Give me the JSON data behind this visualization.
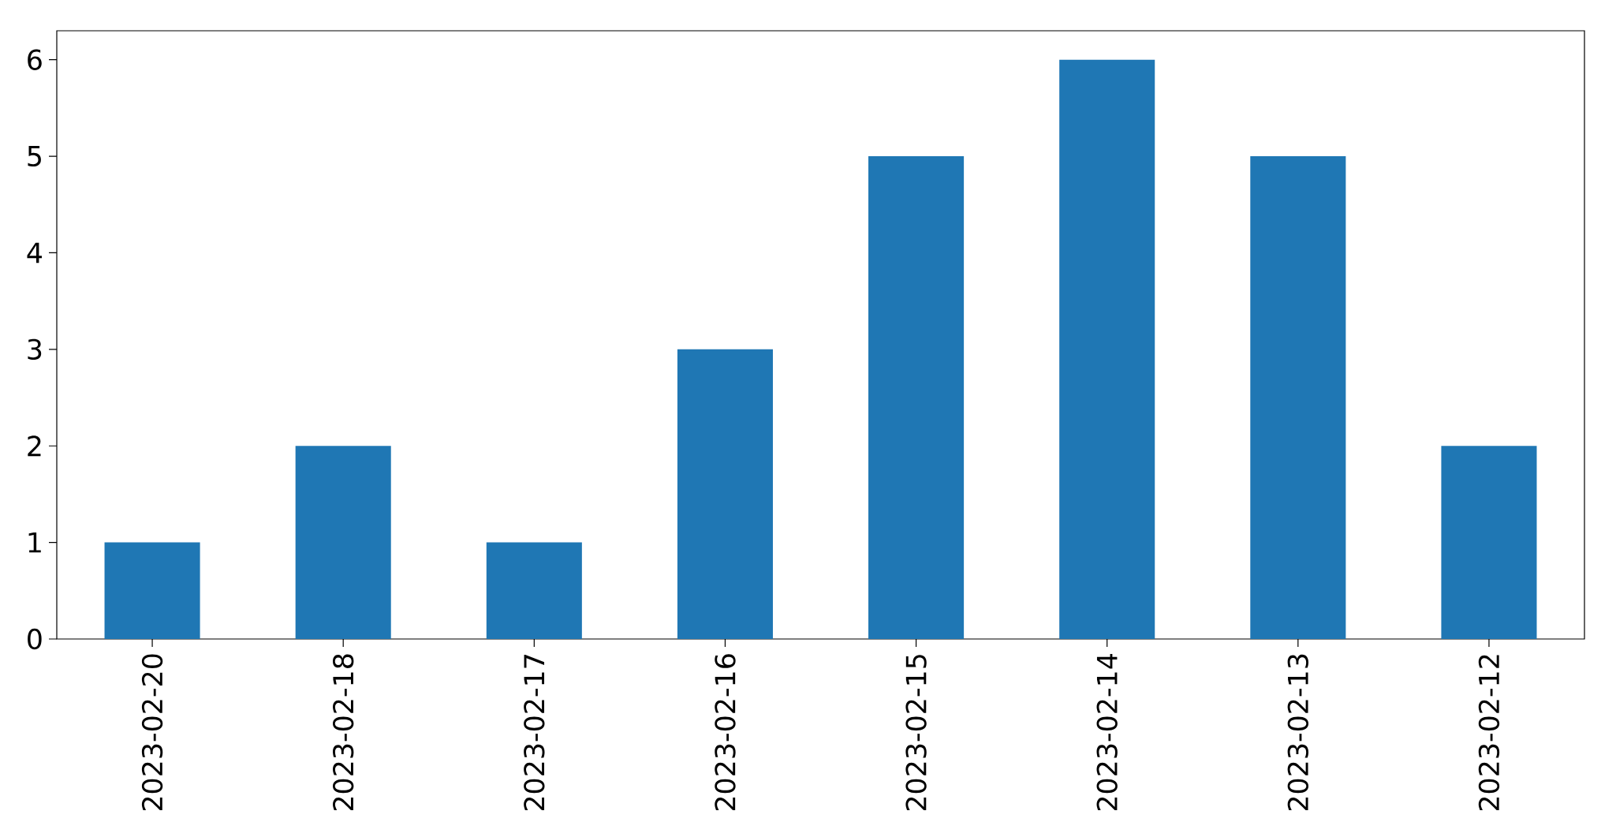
{
  "chart_data": {
    "type": "bar",
    "categories": [
      "2023-02-20",
      "2023-02-18",
      "2023-02-17",
      "2023-02-16",
      "2023-02-15",
      "2023-02-14",
      "2023-02-13",
      "2023-02-12"
    ],
    "values": [
      1,
      2,
      1,
      3,
      5,
      6,
      5,
      2
    ],
    "color": "#1f77b4",
    "ylim": [
      0,
      6.3
    ],
    "yticks": [
      0,
      1,
      2,
      3,
      4,
      5,
      6
    ],
    "grid": false
  }
}
